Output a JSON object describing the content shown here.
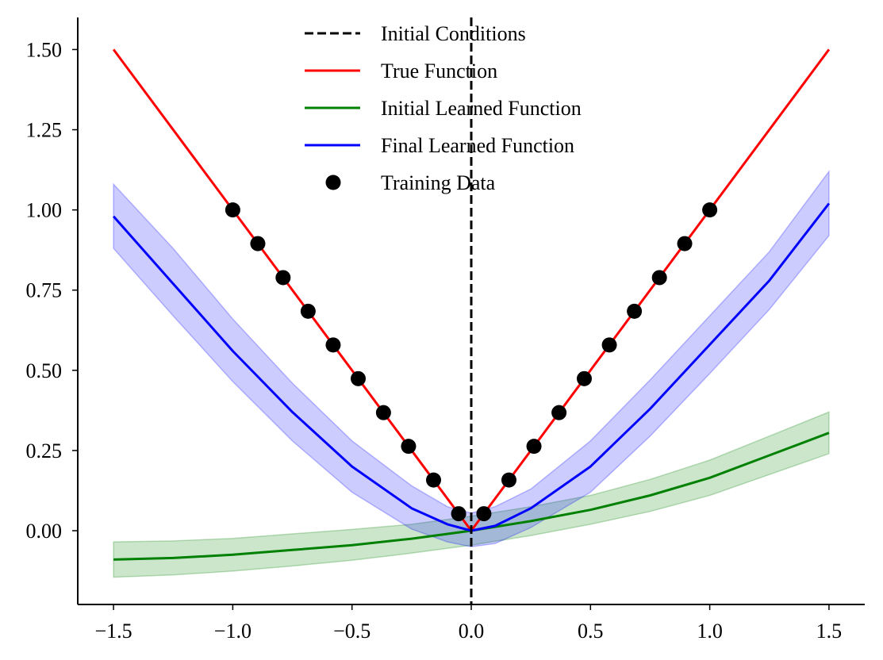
{
  "chart_data": {
    "type": "line",
    "title": "",
    "xlabel": "",
    "ylabel": "",
    "xlim": [
      -1.65,
      1.65
    ],
    "ylim": [
      -0.23,
      1.6
    ],
    "xticks": [
      -1.5,
      -1.0,
      -0.5,
      0.0,
      0.5,
      1.0,
      1.5
    ],
    "xtick_labels": [
      "−1.5",
      "−1.0",
      "−0.5",
      "0.0",
      "0.5",
      "1.0",
      "1.5"
    ],
    "yticks": [
      0.0,
      0.25,
      0.5,
      0.75,
      1.0,
      1.25,
      1.5
    ],
    "ytick_labels": [
      "0.00",
      "0.25",
      "0.50",
      "0.75",
      "1.00",
      "1.25",
      "1.50"
    ],
    "grid": false,
    "legend_position": "top-center",
    "vline": {
      "name": "Initial Conditions",
      "x": 0.0,
      "color": "#000000",
      "style": "dashed"
    },
    "series": [
      {
        "name": "True Function",
        "color": "#ff0000",
        "x": [
          -1.5,
          -1.0,
          0.0,
          1.0,
          1.5
        ],
        "y": [
          1.5,
          1.0,
          0.0,
          1.0,
          1.5
        ]
      },
      {
        "name": "Initial Learned Function",
        "color": "#008000",
        "band_color": "#008000",
        "x": [
          -1.5,
          -1.25,
          -1.0,
          -0.75,
          -0.5,
          -0.25,
          0.0,
          0.25,
          0.5,
          0.75,
          1.0,
          1.25,
          1.5
        ],
        "y": [
          -0.09,
          -0.085,
          -0.075,
          -0.06,
          -0.045,
          -0.025,
          0.0,
          0.03,
          0.065,
          0.11,
          0.165,
          0.235,
          0.305
        ],
        "lower": [
          -0.145,
          -0.138,
          -0.126,
          -0.11,
          -0.092,
          -0.07,
          -0.045,
          -0.015,
          0.02,
          0.06,
          0.11,
          0.175,
          0.24
        ],
        "upper": [
          -0.035,
          -0.032,
          -0.024,
          -0.01,
          0.004,
          0.02,
          0.045,
          0.075,
          0.11,
          0.16,
          0.22,
          0.295,
          0.37
        ]
      },
      {
        "name": "Final Learned Function",
        "color": "#0000ff",
        "band_color": "#0000ff",
        "x": [
          -1.5,
          -1.25,
          -1.0,
          -0.75,
          -0.5,
          -0.25,
          -0.1,
          0.0,
          0.1,
          0.25,
          0.5,
          0.75,
          1.0,
          1.25,
          1.5
        ],
        "y": [
          0.98,
          0.77,
          0.56,
          0.37,
          0.2,
          0.07,
          0.02,
          0.0,
          0.015,
          0.07,
          0.2,
          0.38,
          0.58,
          0.78,
          1.02
        ],
        "lower": [
          0.88,
          0.67,
          0.465,
          0.28,
          0.12,
          0.005,
          -0.035,
          -0.05,
          -0.04,
          0.01,
          0.12,
          0.295,
          0.49,
          0.69,
          0.92
        ],
        "upper": [
          1.08,
          0.88,
          0.66,
          0.46,
          0.28,
          0.14,
          0.075,
          0.055,
          0.075,
          0.13,
          0.28,
          0.47,
          0.67,
          0.87,
          1.12
        ]
      }
    ],
    "scatter": {
      "name": "Training Data",
      "color": "#000000",
      "x": [
        -1.0,
        -0.895,
        -0.789,
        -0.684,
        -0.579,
        -0.474,
        -0.368,
        -0.263,
        -0.158,
        -0.053,
        0.053,
        0.158,
        0.263,
        0.368,
        0.474,
        0.579,
        0.684,
        0.789,
        0.895,
        1.0
      ],
      "y": [
        1.0,
        0.895,
        0.789,
        0.684,
        0.579,
        0.474,
        0.368,
        0.263,
        0.158,
        0.053,
        0.053,
        0.158,
        0.263,
        0.368,
        0.474,
        0.579,
        0.684,
        0.789,
        0.895,
        1.0
      ]
    },
    "legend": [
      {
        "label": "Initial Conditions",
        "kind": "dashed",
        "color": "#000000"
      },
      {
        "label": "True Function",
        "kind": "line",
        "color": "#ff0000"
      },
      {
        "label": "Initial Learned Function",
        "kind": "line",
        "color": "#008000"
      },
      {
        "label": "Final Learned Function",
        "kind": "line",
        "color": "#0000ff"
      },
      {
        "label": "Training Data",
        "kind": "dot",
        "color": "#000000"
      }
    ]
  }
}
